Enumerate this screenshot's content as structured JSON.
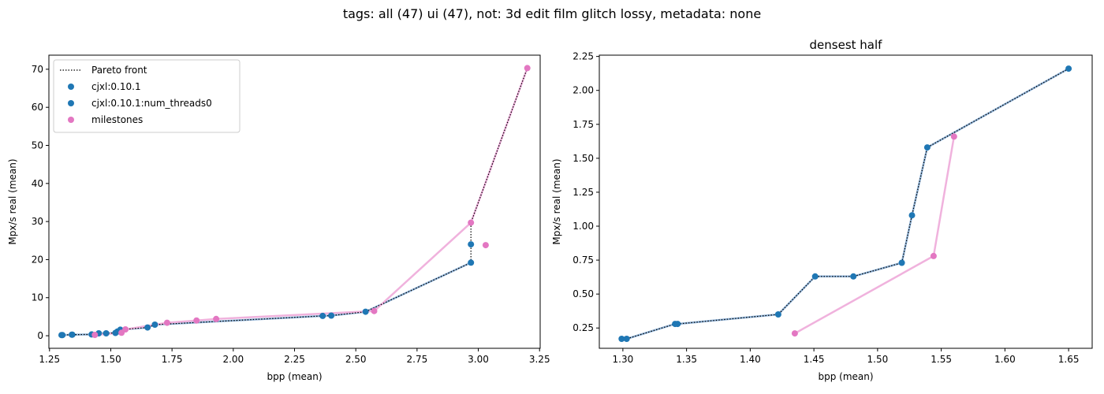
{
  "figure": {
    "suptitle": "tags: all (47) ui (47), not: 3d edit film glitch lossy, metadata: none"
  },
  "colors": {
    "cjxl": "#1f77b4",
    "cjxl_line": "#8fb3d8",
    "milestones": "#e377c2",
    "milestones_line": "#f0b2dd",
    "pareto": "#000000",
    "axis": "#000000",
    "background": "#ffffff"
  },
  "chart_data": [
    {
      "type": "scatter",
      "title": "",
      "xlabel": "bpp (mean)",
      "ylabel": "Mpx/s real (mean)",
      "xlim": [
        1.2475,
        3.2525
      ],
      "ylim": [
        -3.3,
        73.7
      ],
      "xticks": [
        "1.25",
        "1.50",
        "1.75",
        "2.00",
        "2.25",
        "2.50",
        "2.75",
        "3.00",
        "3.25"
      ],
      "yticks": [
        "0",
        "10",
        "20",
        "30",
        "40",
        "50",
        "60",
        "70"
      ],
      "grid": false,
      "legend": {
        "position": "top-left",
        "entries": [
          "Pareto front",
          "cjxl:0.10.1",
          "cjxl:0.10.1:num_threads0",
          "milestones"
        ]
      },
      "series": [
        {
          "name": "cjxl:0.10.1",
          "role": "cjxl",
          "connect": true,
          "points": [
            [
              1.299,
              0.17
            ],
            [
              1.303,
              0.17
            ],
            [
              1.341,
              0.28
            ],
            [
              1.343,
              0.28
            ],
            [
              1.422,
              0.35
            ],
            [
              1.451,
              0.63
            ],
            [
              1.481,
              0.63
            ],
            [
              1.519,
              0.73
            ],
            [
              1.527,
              1.08
            ],
            [
              1.539,
              1.58
            ],
            [
              1.65,
              2.16
            ],
            [
              1.68,
              2.9
            ],
            [
              2.365,
              5.2
            ],
            [
              2.4,
              5.3
            ],
            [
              2.54,
              6.3
            ],
            [
              2.97,
              19.2
            ]
          ]
        },
        {
          "name": "cjxl:0.10.1:num_threads0",
          "role": "cjxl",
          "connect": false,
          "points": [
            [
              2.97,
              24.0
            ]
          ]
        },
        {
          "name": "milestones",
          "role": "milestones",
          "connect": true,
          "points": [
            [
              1.435,
              0.21
            ],
            [
              1.544,
              0.78
            ],
            [
              1.56,
              1.66
            ],
            [
              1.73,
              3.4
            ],
            [
              1.85,
              4.0
            ],
            [
              1.93,
              4.4
            ],
            [
              2.575,
              6.5
            ],
            [
              2.97,
              29.7
            ],
            [
              3.2,
              70.3
            ]
          ]
        },
        {
          "name": "milestones",
          "role": "milestones",
          "connect": false,
          "points": [
            [
              3.03,
              23.8
            ]
          ]
        }
      ],
      "pareto_front": [
        [
          1.299,
          0.17
        ],
        [
          1.303,
          0.17
        ],
        [
          1.341,
          0.28
        ],
        [
          1.343,
          0.28
        ],
        [
          1.422,
          0.35
        ],
        [
          1.451,
          0.63
        ],
        [
          1.481,
          0.63
        ],
        [
          1.519,
          0.73
        ],
        [
          1.527,
          1.08
        ],
        [
          1.539,
          1.58
        ],
        [
          1.65,
          2.16
        ],
        [
          1.68,
          2.9
        ],
        [
          2.365,
          5.2
        ],
        [
          2.4,
          5.3
        ],
        [
          2.54,
          6.3
        ],
        [
          2.97,
          19.2
        ],
        [
          2.97,
          24.0
        ],
        [
          2.97,
          29.7
        ],
        [
          3.2,
          70.3
        ]
      ]
    },
    {
      "type": "scatter",
      "title": "densest half",
      "xlabel": "bpp (mean)",
      "ylabel": "Mpx/s real (mean)",
      "xlim": [
        1.2815,
        1.6685
      ],
      "ylim": [
        0.1005,
        2.2595
      ],
      "xticks": [
        "1.30",
        "1.35",
        "1.40",
        "1.45",
        "1.50",
        "1.55",
        "1.60",
        "1.65"
      ],
      "yticks": [
        "0.25",
        "0.50",
        "0.75",
        "1.00",
        "1.25",
        "1.50",
        "1.75",
        "2.00",
        "2.25"
      ],
      "grid": false,
      "series": [
        {
          "name": "cjxl:0.10.1",
          "role": "cjxl",
          "connect": true,
          "points": [
            [
              1.299,
              0.17
            ],
            [
              1.303,
              0.17
            ],
            [
              1.341,
              0.28
            ],
            [
              1.343,
              0.28
            ],
            [
              1.422,
              0.35
            ],
            [
              1.451,
              0.63
            ],
            [
              1.481,
              0.63
            ],
            [
              1.519,
              0.73
            ],
            [
              1.527,
              1.08
            ],
            [
              1.539,
              1.58
            ],
            [
              1.65,
              2.16
            ]
          ]
        },
        {
          "name": "milestones",
          "role": "milestones",
          "connect": true,
          "points": [
            [
              1.435,
              0.21
            ],
            [
              1.544,
              0.78
            ],
            [
              1.56,
              1.66
            ]
          ]
        }
      ],
      "pareto_front": [
        [
          1.299,
          0.17
        ],
        [
          1.303,
          0.17
        ],
        [
          1.341,
          0.28
        ],
        [
          1.343,
          0.28
        ],
        [
          1.422,
          0.35
        ],
        [
          1.451,
          0.63
        ],
        [
          1.481,
          0.63
        ],
        [
          1.519,
          0.73
        ],
        [
          1.527,
          1.08
        ],
        [
          1.539,
          1.58
        ],
        [
          1.65,
          2.16
        ]
      ]
    }
  ]
}
